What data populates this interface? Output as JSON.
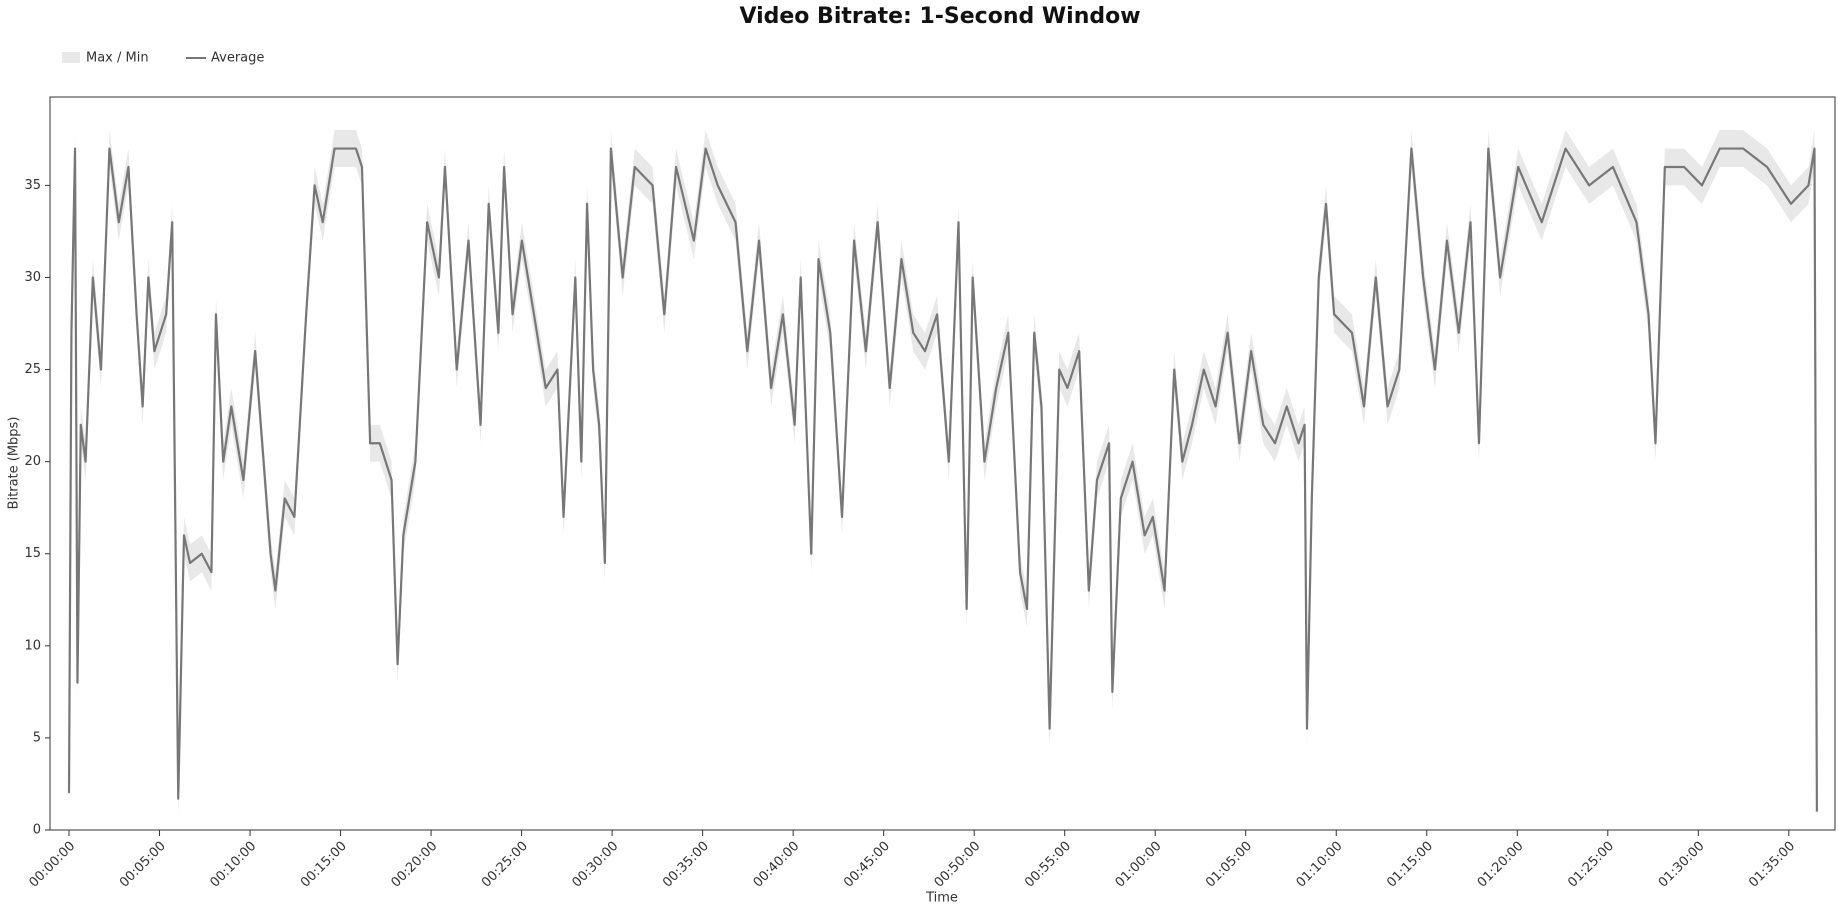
{
  "chart_data": {
    "type": "band-line",
    "title": "Video Bitrate: 1-Second Window",
    "x_label": "Time",
    "y_label": "Bitrate (Mbps)",
    "xlim": [
      -63,
      5853
    ],
    "ylim": [
      0,
      39.8
    ],
    "xticks": [
      {
        "value": 0,
        "label": "00:00:00"
      },
      {
        "value": 300,
        "label": "00:05:00"
      },
      {
        "value": 600,
        "label": "00:10:00"
      },
      {
        "value": 900,
        "label": "00:15:00"
      },
      {
        "value": 1200,
        "label": "00:20:00"
      },
      {
        "value": 1500,
        "label": "00:25:00"
      },
      {
        "value": 1800,
        "label": "00:30:00"
      },
      {
        "value": 2100,
        "label": "00:35:00"
      },
      {
        "value": 2400,
        "label": "00:40:00"
      },
      {
        "value": 2700,
        "label": "00:45:00"
      },
      {
        "value": 3000,
        "label": "00:50:00"
      },
      {
        "value": 3300,
        "label": "00:55:00"
      },
      {
        "value": 3600,
        "label": "01:00:00"
      },
      {
        "value": 3900,
        "label": "01:05:00"
      },
      {
        "value": 4200,
        "label": "01:10:00"
      },
      {
        "value": 4500,
        "label": "01:15:00"
      },
      {
        "value": 4800,
        "label": "01:20:00"
      },
      {
        "value": 5100,
        "label": "01:25:00"
      },
      {
        "value": 5400,
        "label": "01:30:00"
      },
      {
        "value": 5700,
        "label": "01:35:00"
      }
    ],
    "yticks": [
      0,
      5,
      10,
      15,
      20,
      25,
      30,
      35
    ],
    "x": [
      0,
      8,
      20,
      28,
      39,
      55,
      79,
      106,
      134,
      165,
      197,
      224,
      244,
      263,
      283,
      322,
      342,
      362,
      381,
      401,
      440,
      472,
      487,
      511,
      538,
      578,
      617,
      645,
      668,
      684,
      715,
      747,
      786,
      814,
      841,
      880,
      931,
      951,
      971,
      998,
      1030,
      1069,
      1089,
      1108,
      1148,
      1187,
      1226,
      1246,
      1285,
      1324,
      1364,
      1391,
      1423,
      1442,
      1470,
      1501,
      1541,
      1580,
      1619,
      1639,
      1678,
      1698,
      1717,
      1737,
      1757,
      1776,
      1796,
      1835,
      1875,
      1934,
      1973,
      2012,
      2071,
      2110,
      2150,
      2209,
      2248,
      2287,
      2327,
      2366,
      2405,
      2425,
      2460,
      2484,
      2523,
      2562,
      2602,
      2641,
      2680,
      2720,
      2759,
      2798,
      2837,
      2877,
      2916,
      2948,
      2975,
      2995,
      3034,
      3073,
      3113,
      3152,
      3175,
      3199,
      3223,
      3250,
      3282,
      3309,
      3348,
      3380,
      3407,
      3447,
      3458,
      3486,
      3525,
      3565,
      3592,
      3631,
      3663,
      3690,
      3722,
      3761,
      3800,
      3840,
      3879,
      3918,
      3958,
      3997,
      4036,
      4075,
      4095,
      4103,
      4119,
      4142,
      4166,
      4193,
      4252,
      4292,
      4331,
      4370,
      4409,
      4449,
      4488,
      4527,
      4567,
      4606,
      4645,
      4673,
      4704,
      4743,
      4803,
      4881,
      4960,
      5038,
      5117,
      5195,
      5235,
      5258,
      5289,
      5353,
      5412,
      5471,
      5549,
      5628,
      5707,
      5765,
      5785,
      5793
    ],
    "series": [
      {
        "name": "Max / Min",
        "color": "#e8e8e8",
        "max": [
          3,
          28,
          38,
          9,
          23,
          21,
          31,
          26,
          38,
          34,
          37,
          29,
          24,
          31,
          27,
          29,
          34,
          2.7,
          17,
          15.5,
          16,
          15,
          29,
          21,
          24,
          20,
          27,
          21,
          16,
          14,
          19,
          18,
          29,
          36,
          34,
          38,
          38,
          38,
          37,
          22,
          22,
          20,
          10,
          17,
          21,
          34,
          31,
          37,
          26,
          33,
          23,
          35,
          28,
          37,
          29,
          33,
          29,
          25,
          26,
          18,
          31,
          21,
          35,
          26,
          23,
          15.5,
          38,
          31,
          37,
          36,
          29,
          37,
          33,
          38,
          36,
          34,
          27,
          33,
          25,
          29,
          23,
          31,
          16,
          32,
          28,
          18,
          33,
          27,
          34,
          25,
          32,
          28,
          27,
          29,
          21,
          34,
          13,
          31,
          21,
          25,
          28,
          15,
          13,
          28,
          24,
          6.5,
          26,
          25,
          27,
          14,
          20,
          22,
          8.5,
          19,
          21,
          17,
          18,
          14,
          26,
          21,
          23,
          26,
          24,
          28,
          22,
          27,
          23,
          22,
          24,
          22,
          23,
          6.5,
          19,
          31,
          35,
          29,
          28,
          24,
          31,
          24,
          26,
          38,
          31,
          26,
          33,
          28,
          34,
          22,
          38,
          31,
          37,
          34,
          38,
          36,
          37,
          34,
          29,
          22,
          37,
          37,
          36,
          38,
          38,
          37,
          35,
          36,
          38,
          2
        ],
        "min": [
          1,
          26,
          36,
          7,
          21,
          19,
          29,
          24,
          36,
          32,
          35,
          27,
          22,
          29,
          25,
          27,
          32,
          0.7,
          15,
          13.5,
          14,
          13,
          27,
          19,
          22,
          18,
          25,
          19,
          14,
          12,
          17,
          16,
          27,
          34,
          32,
          36,
          36,
          36,
          35,
          20,
          20,
          18,
          8,
          15,
          19,
          32,
          29,
          35,
          24,
          31,
          21,
          33,
          26,
          35,
          27,
          31,
          27,
          23,
          24,
          16,
          29,
          19,
          33,
          24,
          21,
          13.5,
          36,
          29,
          35,
          34,
          27,
          35,
          31,
          36,
          34,
          32,
          25,
          31,
          23,
          27,
          21,
          29,
          14,
          30,
          26,
          16,
          31,
          25,
          32,
          23,
          30,
          26,
          25,
          27,
          19,
          32,
          11,
          29,
          19,
          23,
          26,
          13,
          11,
          26,
          22,
          4.5,
          24,
          23,
          25,
          12,
          18,
          20,
          6.5,
          17,
          19,
          15,
          16,
          12,
          24,
          19,
          21,
          24,
          22,
          26,
          20,
          25,
          21,
          20,
          22,
          20,
          21,
          4.5,
          17,
          29,
          33,
          27,
          26,
          22,
          29,
          22,
          24,
          36,
          29,
          24,
          31,
          26,
          32,
          20,
          36,
          29,
          35,
          32,
          36,
          34,
          35,
          32,
          27,
          20,
          35,
          35,
          34,
          36,
          36,
          35,
          33,
          34,
          36,
          0.3
        ]
      },
      {
        "name": "Average",
        "color": "#777777",
        "values": [
          2,
          27,
          37,
          8,
          22,
          20,
          30,
          25,
          37,
          33,
          36,
          28,
          23,
          30,
          26,
          28,
          33,
          1.7,
          16,
          14.5,
          15,
          14,
          28,
          20,
          23,
          19,
          26,
          20,
          15,
          13,
          18,
          17,
          28,
          35,
          33,
          37,
          37,
          37,
          36,
          21,
          21,
          19,
          9,
          16,
          20,
          33,
          30,
          36,
          25,
          32,
          22,
          34,
          27,
          36,
          28,
          32,
          28,
          24,
          25,
          17,
          30,
          20,
          34,
          25,
          22,
          14.5,
          37,
          30,
          36,
          35,
          28,
          36,
          32,
          37,
          35,
          33,
          26,
          32,
          24,
          28,
          22,
          30,
          15,
          31,
          27,
          17,
          32,
          26,
          33,
          24,
          31,
          27,
          26,
          28,
          20,
          33,
          12,
          30,
          20,
          24,
          27,
          14,
          12,
          27,
          23,
          5.5,
          25,
          24,
          26,
          13,
          19,
          21,
          7.5,
          18,
          20,
          16,
          17,
          13,
          25,
          20,
          22,
          25,
          23,
          27,
          21,
          26,
          22,
          21,
          23,
          21,
          22,
          5.5,
          18,
          30,
          34,
          28,
          27,
          23,
          30,
          23,
          25,
          37,
          30,
          25,
          32,
          27,
          33,
          21,
          37,
          30,
          36,
          33,
          37,
          35,
          36,
          33,
          28,
          21,
          36,
          36,
          35,
          37,
          37,
          36,
          34,
          35,
          37,
          1
        ]
      }
    ]
  }
}
